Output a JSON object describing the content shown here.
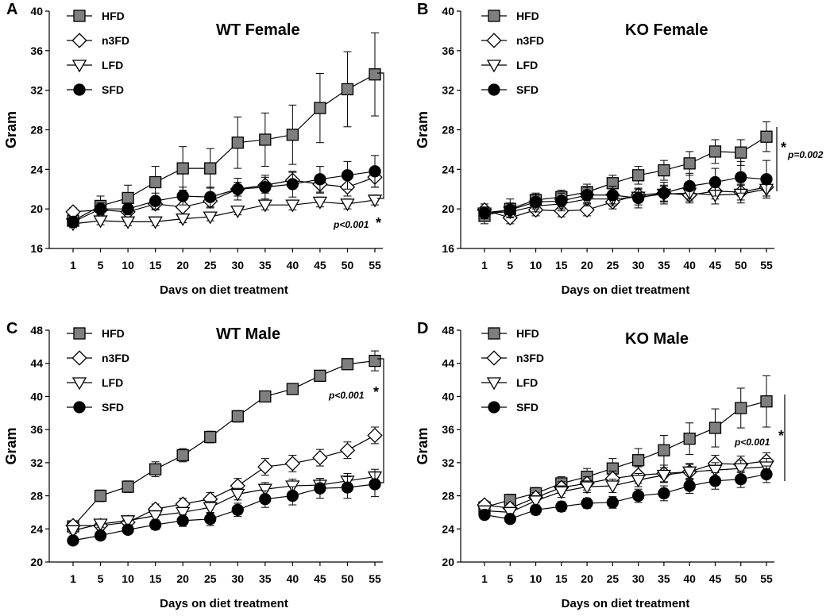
{
  "figure": {
    "background": "#ffffff"
  },
  "series_styles": {
    "HFD": {
      "marker": "square",
      "fill": "#7f7f7f"
    },
    "n3FD": {
      "marker": "diamond",
      "fill": "#ffffff"
    },
    "LFD": {
      "marker": "triangle-down",
      "fill": "#ffffff"
    },
    "SFD": {
      "marker": "circle",
      "fill": "#000000"
    }
  },
  "chart_data": [
    {
      "panel_letter": "A",
      "type": "line",
      "title": "WT Female",
      "xlabel": "Davs on diet treatment",
      "ylabel": "Gram",
      "x": [
        1,
        5,
        10,
        15,
        20,
        25,
        30,
        35,
        40,
        45,
        50,
        55
      ],
      "ylim": [
        16,
        40
      ],
      "yticks": [
        16,
        20,
        24,
        28,
        32,
        36,
        40
      ],
      "legend_position": "top-left",
      "significance": {
        "label": "p<0.001",
        "star": "*"
      },
      "series": [
        {
          "name": "HFD",
          "values": [
            18.8,
            20.3,
            21.1,
            22.7,
            24.1,
            24.1,
            26.7,
            27.0,
            27.5,
            30.2,
            32.1,
            33.6
          ],
          "errors": [
            0.6,
            1.0,
            1.3,
            1.6,
            2.2,
            2.0,
            2.6,
            2.7,
            3.0,
            3.5,
            3.8,
            4.2
          ]
        },
        {
          "name": "n3FD",
          "values": [
            19.7,
            19.9,
            19.7,
            20.5,
            20.2,
            20.8,
            22.0,
            22.4,
            22.9,
            22.5,
            22.2,
            23.2
          ],
          "errors": [
            0.4,
            0.5,
            0.6,
            0.6,
            0.7,
            0.7,
            0.7,
            0.8,
            0.8,
            0.9,
            0.9,
            1.0
          ]
        },
        {
          "name": "LFD",
          "values": [
            18.5,
            18.8,
            18.7,
            18.7,
            19.0,
            19.2,
            19.8,
            20.4,
            20.4,
            20.7,
            20.5,
            20.9
          ],
          "errors": [
            0.4,
            0.4,
            0.4,
            0.4,
            0.4,
            0.4,
            0.4,
            0.5,
            0.5,
            0.5,
            0.5,
            0.5
          ]
        },
        {
          "name": "SFD",
          "values": [
            18.7,
            20.0,
            20.0,
            20.8,
            21.3,
            21.2,
            22.0,
            22.2,
            22.5,
            23.0,
            23.4,
            23.8
          ],
          "errors": [
            0.5,
            0.6,
            0.6,
            0.8,
            0.9,
            1.0,
            1.1,
            1.2,
            1.3,
            1.3,
            1.4,
            1.6
          ]
        }
      ]
    },
    {
      "panel_letter": "B",
      "type": "line",
      "title": "KO Female",
      "xlabel": "Days on diet treatment",
      "ylabel": "Gram",
      "x": [
        1,
        5,
        10,
        15,
        20,
        25,
        30,
        35,
        40,
        45,
        50,
        55
      ],
      "ylim": [
        16,
        40
      ],
      "yticks": [
        16,
        20,
        24,
        28,
        32,
        36,
        40
      ],
      "legend_position": "top-left",
      "significance": {
        "label": "p=0.002",
        "star": "*"
      },
      "series": [
        {
          "name": "HFD",
          "values": [
            19.3,
            20.0,
            20.9,
            21.2,
            21.7,
            22.6,
            23.4,
            23.9,
            24.6,
            25.8,
            25.7,
            27.3
          ],
          "errors": [
            0.8,
            1.0,
            0.7,
            0.7,
            0.8,
            0.8,
            0.9,
            1.0,
            1.2,
            1.2,
            1.3,
            1.5
          ]
        },
        {
          "name": "n3FD",
          "values": [
            19.9,
            19.1,
            19.9,
            19.8,
            19.9,
            20.7,
            21.4,
            21.6,
            21.4,
            21.8,
            21.7,
            22.2
          ],
          "errors": [
            0.6,
            0.6,
            0.6,
            0.6,
            0.6,
            0.7,
            0.7,
            0.8,
            0.8,
            0.8,
            0.8,
            0.9
          ]
        },
        {
          "name": "LFD",
          "values": [
            19.6,
            19.7,
            20.3,
            20.5,
            21.0,
            21.0,
            21.2,
            21.5,
            21.6,
            21.4,
            21.5,
            22.0
          ],
          "errors": [
            0.5,
            0.6,
            0.6,
            0.7,
            0.7,
            0.7,
            0.8,
            0.8,
            0.8,
            0.9,
            0.9,
            0.9
          ]
        },
        {
          "name": "SFD",
          "values": [
            19.6,
            19.9,
            20.7,
            20.8,
            21.4,
            21.4,
            21.1,
            21.6,
            22.3,
            22.7,
            23.2,
            23.0
          ],
          "errors": [
            0.6,
            0.7,
            0.7,
            0.8,
            0.8,
            0.9,
            1.0,
            1.1,
            1.3,
            1.4,
            1.6,
            1.9
          ]
        }
      ]
    },
    {
      "panel_letter": "C",
      "type": "line",
      "title": "WT Male",
      "xlabel": "Days on diet treatment",
      "ylabel": "Gram",
      "x": [
        1,
        5,
        10,
        15,
        20,
        25,
        30,
        35,
        40,
        45,
        50,
        55
      ],
      "ylim": [
        20,
        48
      ],
      "yticks": [
        20,
        24,
        28,
        32,
        36,
        40,
        44,
        48
      ],
      "legend_position": "top-left",
      "significance": {
        "label": "p<0.001",
        "star": "*"
      },
      "series": [
        {
          "name": "HFD",
          "values": [
            24.3,
            28.0,
            29.1,
            31.2,
            32.9,
            35.1,
            37.6,
            40.0,
            40.9,
            42.5,
            43.9,
            44.3
          ],
          "errors": [
            0.3,
            0.7,
            0.7,
            0.9,
            0.8,
            0.7,
            0.7,
            0.6,
            0.5,
            0.6,
            0.5,
            1.2
          ]
        },
        {
          "name": "n3FD",
          "values": [
            24.4,
            24.4,
            24.8,
            26.4,
            27.0,
            27.6,
            29.2,
            31.5,
            31.9,
            32.6,
            33.5,
            35.3
          ],
          "errors": [
            0.4,
            0.5,
            0.5,
            0.6,
            0.7,
            0.8,
            0.9,
            1.0,
            1.0,
            1.0,
            1.0,
            1.0
          ]
        },
        {
          "name": "LFD",
          "values": [
            23.8,
            24.6,
            25.0,
            25.6,
            26.0,
            26.6,
            28.2,
            28.8,
            29.2,
            29.3,
            29.8,
            30.3
          ],
          "errors": [
            0.4,
            0.4,
            0.5,
            0.6,
            0.6,
            0.7,
            0.7,
            0.8,
            0.8,
            0.8,
            0.9,
            0.9
          ]
        },
        {
          "name": "SFD",
          "values": [
            22.6,
            23.2,
            23.9,
            24.5,
            25.0,
            25.2,
            26.3,
            27.6,
            28.0,
            28.9,
            29.0,
            29.4
          ],
          "errors": [
            0.4,
            0.5,
            0.5,
            0.6,
            0.7,
            0.8,
            0.8,
            1.0,
            1.1,
            1.2,
            1.3,
            1.5
          ]
        }
      ]
    },
    {
      "panel_letter": "D",
      "type": "line",
      "title": "KO Male",
      "xlabel": "Days on diet treatment",
      "ylabel": "Gram",
      "x": [
        1,
        5,
        10,
        15,
        20,
        25,
        30,
        35,
        40,
        45,
        50,
        55
      ],
      "ylim": [
        20,
        48
      ],
      "yticks": [
        20,
        24,
        28,
        32,
        36,
        40,
        44,
        48
      ],
      "legend_position": "top-left",
      "significance": {
        "label": "p<0.001",
        "star": "*"
      },
      "series": [
        {
          "name": "HFD",
          "values": [
            26.6,
            27.5,
            28.3,
            29.5,
            30.3,
            31.3,
            32.3,
            33.5,
            34.9,
            36.2,
            38.6,
            39.4
          ],
          "errors": [
            0.5,
            0.7,
            0.7,
            0.8,
            1.0,
            1.2,
            1.4,
            1.8,
            1.9,
            2.3,
            2.4,
            3.1
          ]
        },
        {
          "name": "n3FD",
          "values": [
            26.9,
            26.5,
            27.8,
            29.0,
            29.5,
            30.1,
            30.5,
            30.7,
            30.9,
            31.9,
            31.8,
            32.2
          ],
          "errors": [
            0.5,
            0.6,
            0.6,
            0.7,
            0.8,
            0.9,
            1.0,
            1.0,
            1.0,
            1.0,
            1.0,
            1.0
          ]
        },
        {
          "name": "LFD",
          "values": [
            26.2,
            26.0,
            27.4,
            28.5,
            29.1,
            29.2,
            29.9,
            30.5,
            30.9,
            31.1,
            31.3,
            31.5
          ],
          "errors": [
            0.5,
            0.6,
            0.6,
            0.7,
            0.7,
            0.8,
            0.8,
            0.9,
            0.9,
            0.9,
            1.0,
            1.0
          ]
        },
        {
          "name": "SFD",
          "values": [
            25.7,
            25.2,
            26.3,
            26.7,
            27.1,
            27.2,
            28.0,
            28.3,
            29.2,
            29.8,
            30.0,
            30.6
          ],
          "errors": [
            0.4,
            0.5,
            0.6,
            0.6,
            0.6,
            0.7,
            0.8,
            0.9,
            0.9,
            1.0,
            1.0,
            1.0
          ]
        }
      ]
    }
  ]
}
